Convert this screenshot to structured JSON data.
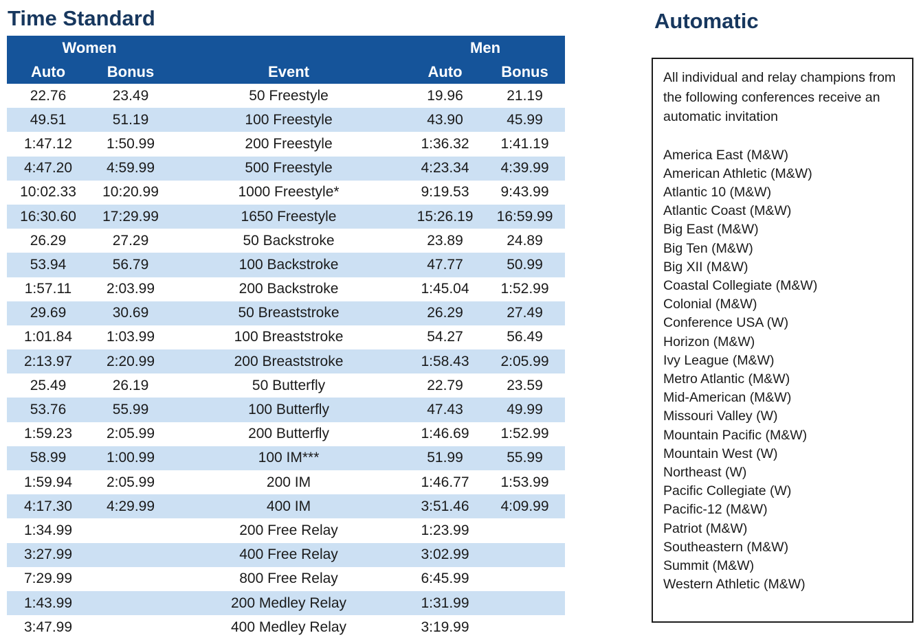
{
  "colors": {
    "header_blue": "#15549a",
    "row_alt_blue": "#cce0f3",
    "title_navy": "#17375e",
    "text": "#1a1a1a"
  },
  "titles": {
    "left": "Time Standard",
    "right": "Automatic"
  },
  "table": {
    "group_headers": {
      "women": "Women",
      "men": "Men"
    },
    "columns": [
      "Auto",
      "Bonus",
      "Event",
      "Auto",
      "Bonus"
    ],
    "rows": [
      [
        "22.76",
        "23.49",
        "50 Freestyle",
        "19.96",
        "21.19"
      ],
      [
        "49.51",
        "51.19",
        "100 Freestyle",
        "43.90",
        "45.99"
      ],
      [
        "1:47.12",
        "1:50.99",
        "200 Freestyle",
        "1:36.32",
        "1:41.19"
      ],
      [
        "4:47.20",
        "4:59.99",
        "500 Freestyle",
        "4:23.34",
        "4:39.99"
      ],
      [
        "10:02.33",
        "10:20.99",
        "1000 Freestyle*",
        "9:19.53",
        "9:43.99"
      ],
      [
        "16:30.60",
        "17:29.99",
        "1650 Freestyle",
        "15:26.19",
        "16:59.99"
      ],
      [
        "26.29",
        "27.29",
        "50 Backstroke",
        "23.89",
        "24.89"
      ],
      [
        "53.94",
        "56.79",
        "100 Backstroke",
        "47.77",
        "50.99"
      ],
      [
        "1:57.11",
        "2:03.99",
        "200 Backstroke",
        "1:45.04",
        "1:52.99"
      ],
      [
        "29.69",
        "30.69",
        "50 Breaststroke",
        "26.29",
        "27.49"
      ],
      [
        "1:01.84",
        "1:03.99",
        "100 Breaststroke",
        "54.27",
        "56.49"
      ],
      [
        "2:13.97",
        "2:20.99",
        "200 Breaststroke",
        "1:58.43",
        "2:05.99"
      ],
      [
        "25.49",
        "26.19",
        "50 Butterfly",
        "22.79",
        "23.59"
      ],
      [
        "53.76",
        "55.99",
        "100 Butterfly",
        "47.43",
        "49.99"
      ],
      [
        "1:59.23",
        "2:05.99",
        "200 Butterfly",
        "1:46.69",
        "1:52.99"
      ],
      [
        "58.99",
        "1:00.99",
        "100 IM***",
        "51.99",
        "55.99"
      ],
      [
        "1:59.94",
        "2:05.99",
        "200 IM",
        "1:46.77",
        "1:53.99"
      ],
      [
        "4:17.30",
        "4:29.99",
        "400 IM",
        "3:51.46",
        "4:09.99"
      ],
      [
        "1:34.99",
        "",
        "200 Free Relay",
        "1:23.99",
        ""
      ],
      [
        "3:27.99",
        "",
        "400 Free Relay",
        "3:02.99",
        ""
      ],
      [
        "7:29.99",
        "",
        "800 Free Relay",
        "6:45.99",
        ""
      ],
      [
        "1:43.99",
        "",
        "200 Medley Relay",
        "1:31.99",
        ""
      ],
      [
        "3:47.99",
        "",
        "400 Medley Relay",
        "3:19.99",
        ""
      ]
    ]
  },
  "automatic": {
    "intro": "All individual and relay champions from the following conferences receive an automatic invitation",
    "conferences": [
      "America East (M&W)",
      "American Athletic (M&W)",
      "Atlantic 10 (M&W)",
      "Atlantic Coast (M&W)",
      "Big East (M&W)",
      "Big Ten (M&W)",
      "Big XII (M&W)",
      "Coastal Collegiate (M&W)",
      "Colonial (M&W)",
      "Conference USA (W)",
      "Horizon (M&W)",
      "Ivy League (M&W)",
      "Metro Atlantic (M&W)",
      "Mid-American (M&W)",
      "Missouri Valley  (W)",
      "Mountain Pacific (M&W)",
      "Mountain West (W)",
      "Northeast (W)",
      "Pacific Collegiate (W)",
      "Pacific-12 (M&W)",
      "Patriot (M&W)",
      "Southeastern (M&W)",
      "Summit (M&W)",
      "Western Athletic (M&W)"
    ]
  }
}
